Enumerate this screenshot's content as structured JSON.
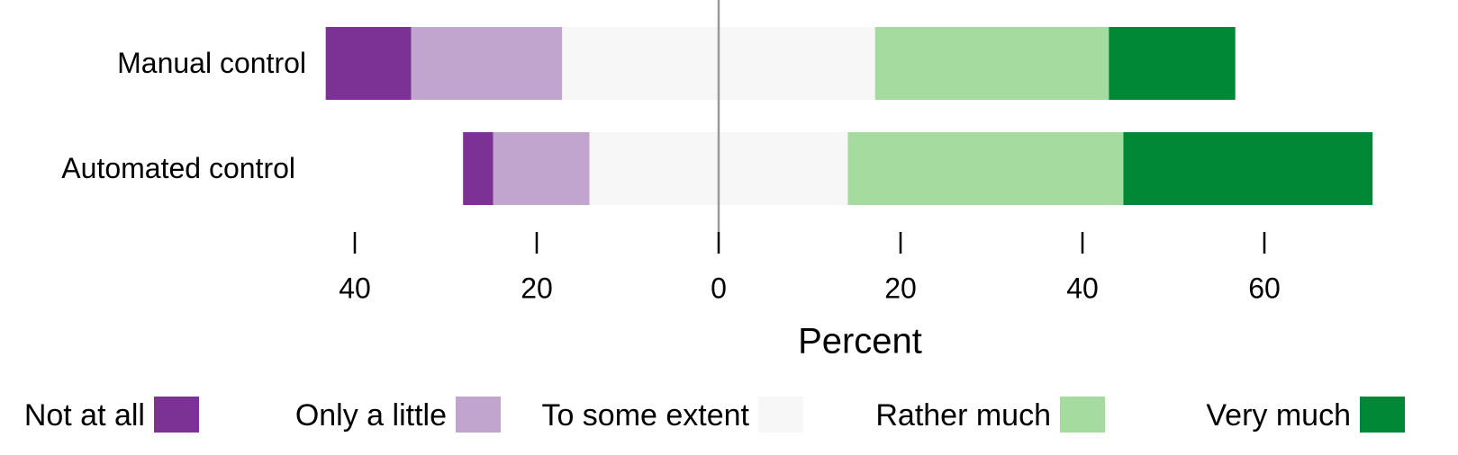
{
  "chart_data": {
    "type": "diverging_bar",
    "categories": [
      "Manual control",
      "Automated control"
    ],
    "series": [
      {
        "name": "Not at all",
        "color": "#7b3294",
        "values": [
          9.4,
          3.3
        ]
      },
      {
        "name": "Only a little",
        "color": "#c2a5cf",
        "values": [
          16.6,
          10.6
        ]
      },
      {
        "name": "To some extent",
        "color": "#f7f7f7",
        "values": [
          34.4,
          28.4
        ]
      },
      {
        "name": "Rather much",
        "color": "#a6dba0",
        "values": [
          25.7,
          30.3
        ]
      },
      {
        "name": "Very much",
        "color": "#008837",
        "values": [
          13.9,
          27.4
        ]
      }
    ],
    "xlabel": "Percent",
    "xlim": [
      -44,
      73
    ],
    "xticks": [
      {
        "value": -40,
        "label": "40"
      },
      {
        "value": -20,
        "label": "20"
      },
      0,
      20,
      40,
      60
    ],
    "legend": "bottom"
  }
}
